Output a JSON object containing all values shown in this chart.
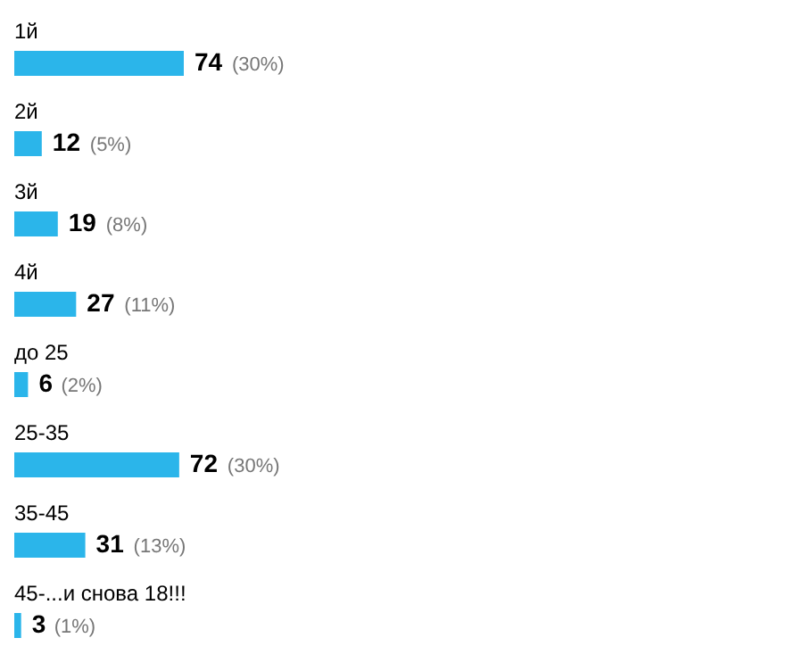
{
  "chart_data": {
    "type": "bar",
    "orientation": "horizontal",
    "categories": [
      "1й",
      "2й",
      "3й",
      "4й",
      "до 25",
      "25-35",
      "35-45",
      "45-...и снова 18!!!"
    ],
    "values": [
      74,
      12,
      19,
      27,
      6,
      72,
      31,
      3
    ],
    "color": "#2bb5ea",
    "data_labels": true,
    "annotations": [
      {
        "text": "(30%)",
        "x": 74,
        "y": "1й"
      },
      {
        "text": "(5%)",
        "x": 12,
        "y": "2й"
      },
      {
        "text": "(8%)",
        "x": 19,
        "y": "3й"
      },
      {
        "text": "(11%)",
        "x": 27,
        "y": "4й"
      },
      {
        "text": "(2%)",
        "x": 6,
        "y": "до 25"
      },
      {
        "text": "(30%)",
        "x": 72,
        "y": "25-35"
      },
      {
        "text": "(13%)",
        "x": 31,
        "y": "35-45"
      },
      {
        "text": "(1%)",
        "x": 3,
        "y": "45-...и снова 18!!!"
      }
    ]
  }
}
